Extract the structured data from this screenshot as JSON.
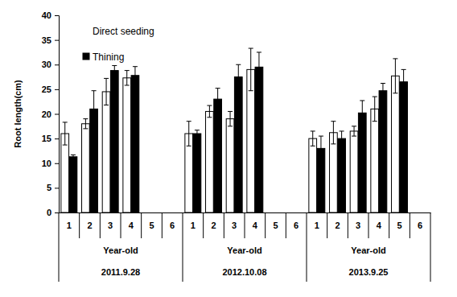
{
  "chart_data": {
    "type": "bar",
    "y_label": "Root length(cm)",
    "categories": [
      "1",
      "2",
      "3",
      "4",
      "5",
      "6",
      "1",
      "2",
      "3",
      "4",
      "5",
      "6",
      "1",
      "2",
      "3",
      "4",
      "5",
      "6"
    ],
    "groups": [
      {
        "name": "2011.9.28",
        "sublabel": "Year-old"
      },
      {
        "name": "2012.10.08",
        "sublabel": "Year-old"
      },
      {
        "name": "2013.9.25",
        "sublabel": "Year-old"
      }
    ],
    "series": [
      {
        "name": "Direct seeding",
        "color": "#ffffff",
        "values": [
          16,
          18,
          24.5,
          27.3,
          null,
          null,
          16,
          20.5,
          19,
          29,
          null,
          null,
          15,
          16.2,
          16.5,
          21,
          27.7,
          null
        ],
        "errors": [
          2.3,
          1,
          2.7,
          1.5,
          null,
          null,
          2.5,
          1.2,
          1.5,
          4.3,
          null,
          null,
          1.5,
          2.3,
          1,
          2.5,
          3.5,
          null
        ]
      },
      {
        "name": "Thining",
        "color": "#000000",
        "values": [
          11.3,
          21,
          28.8,
          27.8,
          null,
          null,
          16,
          23,
          27.5,
          29.5,
          null,
          null,
          13,
          15,
          20.2,
          24.7,
          26.5,
          null
        ],
        "errors": [
          0.4,
          3.7,
          1,
          1.8,
          null,
          null,
          0.7,
          2.2,
          2.5,
          3,
          null,
          null,
          2.5,
          1.5,
          2.5,
          1.5,
          2.5,
          null
        ]
      }
    ],
    "ylim": [
      0,
      40
    ],
    "yticks": [
      0,
      5,
      10,
      15,
      20,
      25,
      30,
      35,
      40
    ],
    "legend": "upper left",
    "grid": false
  }
}
